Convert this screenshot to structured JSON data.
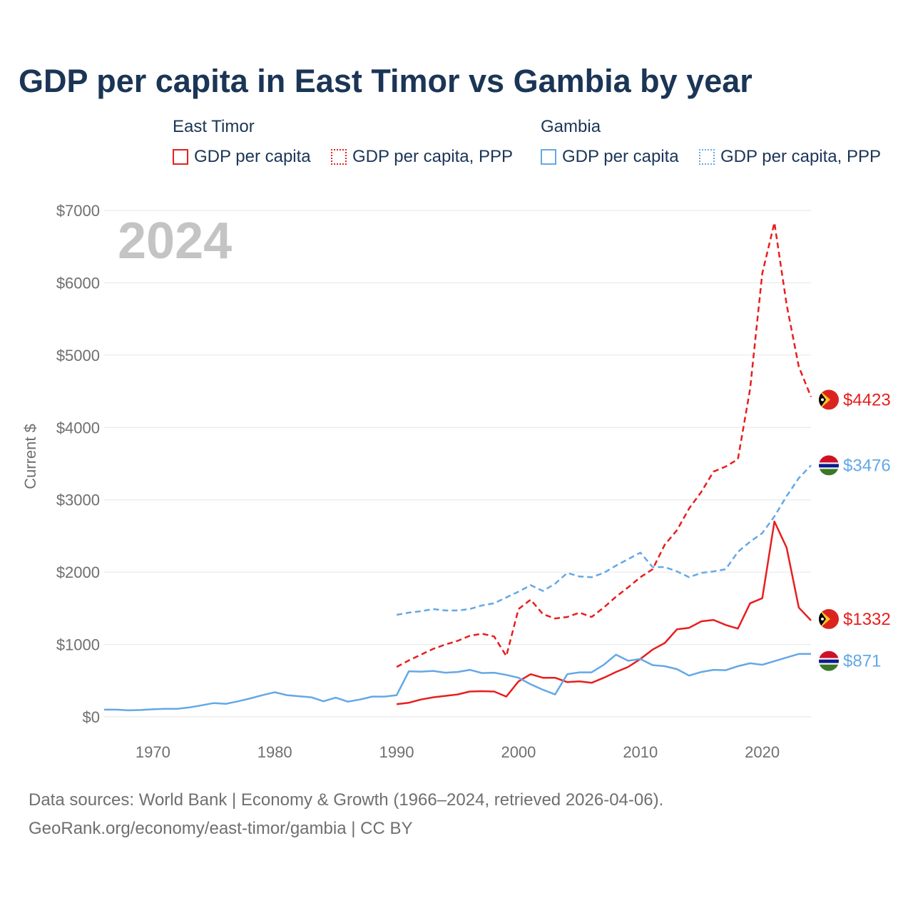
{
  "title": "GDP per capita in East Timor vs Gambia by year",
  "legend": {
    "groups": [
      {
        "name": "East Timor",
        "items": [
          "GDP per capita",
          "GDP per capita, PPP"
        ]
      },
      {
        "name": "Gambia",
        "items": [
          "GDP per capita",
          "GDP per capita, PPP"
        ]
      }
    ]
  },
  "colors": {
    "east_timor": "#e81e1e",
    "gambia": "#64a8e6",
    "grid": "#e6e6e6",
    "axis_text": "#6f6f6f",
    "year_watermark": "#c4c4c4"
  },
  "year_label": "2024",
  "chart_data": {
    "type": "line",
    "title": "GDP per capita in East Timor vs Gambia by year",
    "xlabel": "",
    "ylabel": "Current $",
    "xlim": [
      1966,
      2024
    ],
    "ylim": [
      0,
      7000
    ],
    "x_ticks": [
      1970,
      1980,
      1990,
      2000,
      2010,
      2020
    ],
    "y_ticks": [
      0,
      1000,
      2000,
      3000,
      4000,
      5000,
      6000,
      7000
    ],
    "y_tick_labels": [
      "$0",
      "$1000",
      "$2000",
      "$3000",
      "$4000",
      "$5000",
      "$6000",
      "$7000"
    ],
    "grid": true,
    "series": [
      {
        "name": "East Timor GDP per capita",
        "country": "East Timor",
        "style": "solid",
        "color": "#e81e1e",
        "x": [
          1990,
          1991,
          1992,
          1993,
          1994,
          1995,
          1996,
          1997,
          1998,
          1999,
          2000,
          2001,
          2002,
          2003,
          2004,
          2005,
          2006,
          2007,
          2008,
          2009,
          2010,
          2011,
          2012,
          2013,
          2014,
          2015,
          2016,
          2017,
          2018,
          2019,
          2020,
          2021,
          2022,
          2023,
          2024
        ],
        "values": [
          175,
          195,
          240,
          270,
          290,
          310,
          350,
          355,
          350,
          280,
          490,
          590,
          540,
          540,
          480,
          490,
          470,
          540,
          620,
          690,
          800,
          930,
          1020,
          1210,
          1230,
          1320,
          1340,
          1270,
          1220,
          1570,
          1640,
          2700,
          2340,
          1510,
          1332
        ],
        "end_label": "$1332"
      },
      {
        "name": "East Timor GDP per capita, PPP",
        "country": "East Timor",
        "style": "dashed",
        "color": "#e81e1e",
        "x": [
          1990,
          1991,
          1992,
          1993,
          1994,
          1995,
          1996,
          1997,
          1998,
          1999,
          2000,
          2001,
          2002,
          2003,
          2004,
          2005,
          2006,
          2007,
          2008,
          2009,
          2010,
          2011,
          2012,
          2013,
          2014,
          2015,
          2016,
          2017,
          2018,
          2019,
          2020,
          2021,
          2022,
          2023,
          2024
        ],
        "values": [
          690,
          780,
          860,
          940,
          1000,
          1050,
          1120,
          1150,
          1110,
          840,
          1490,
          1620,
          1420,
          1360,
          1380,
          1440,
          1380,
          1510,
          1660,
          1790,
          1930,
          2040,
          2380,
          2580,
          2880,
          3110,
          3390,
          3460,
          3560,
          4530,
          6130,
          6830,
          5700,
          4840,
          4423
        ],
        "end_label": "$4423"
      },
      {
        "name": "Gambia GDP per capita",
        "country": "Gambia",
        "style": "solid",
        "color": "#64a8e6",
        "x": [
          1966,
          1967,
          1968,
          1969,
          1970,
          1971,
          1972,
          1973,
          1974,
          1975,
          1976,
          1977,
          1978,
          1979,
          1980,
          1981,
          1982,
          1983,
          1984,
          1985,
          1986,
          1987,
          1988,
          1989,
          1990,
          1991,
          1992,
          1993,
          1994,
          1995,
          1996,
          1997,
          1998,
          1999,
          2000,
          2001,
          2002,
          2003,
          2004,
          2005,
          2006,
          2007,
          2008,
          2009,
          2010,
          2011,
          2012,
          2013,
          2014,
          2015,
          2016,
          2017,
          2018,
          2019,
          2020,
          2021,
          2022,
          2023,
          2024
        ],
        "values": [
          100,
          100,
          90,
          95,
          105,
          110,
          110,
          130,
          160,
          190,
          180,
          215,
          255,
          300,
          340,
          300,
          285,
          270,
          215,
          265,
          210,
          240,
          280,
          280,
          300,
          630,
          625,
          635,
          610,
          620,
          650,
          605,
          610,
          580,
          540,
          450,
          375,
          310,
          590,
          615,
          615,
          720,
          860,
          775,
          800,
          715,
          700,
          660,
          570,
          620,
          650,
          645,
          700,
          740,
          720,
          770,
          820,
          870,
          871
        ],
        "end_label": "$871"
      },
      {
        "name": "Gambia GDP per capita, PPP",
        "country": "Gambia",
        "style": "dashed",
        "color": "#64a8e6",
        "x": [
          1990,
          1991,
          1992,
          1993,
          1994,
          1995,
          1996,
          1997,
          1998,
          1999,
          2000,
          2001,
          2002,
          2003,
          2004,
          2005,
          2006,
          2007,
          2008,
          2009,
          2010,
          2011,
          2012,
          2013,
          2014,
          2015,
          2016,
          2017,
          2018,
          2019,
          2020,
          2021,
          2022,
          2023,
          2024
        ],
        "values": [
          1410,
          1440,
          1460,
          1490,
          1470,
          1470,
          1490,
          1540,
          1570,
          1650,
          1730,
          1820,
          1740,
          1840,
          1990,
          1940,
          1930,
          1990,
          2090,
          2180,
          2270,
          2070,
          2070,
          2010,
          1930,
          1990,
          2010,
          2040,
          2280,
          2420,
          2540,
          2770,
          3050,
          3300,
          3476
        ],
        "end_label": "$3476"
      }
    ]
  },
  "footer": {
    "line1": "Data sources: World Bank | Economy & Growth (1966–2024, retrieved 2026-04-06).",
    "line2": "GeoRank.org/economy/east-timor/gambia | CC BY"
  }
}
